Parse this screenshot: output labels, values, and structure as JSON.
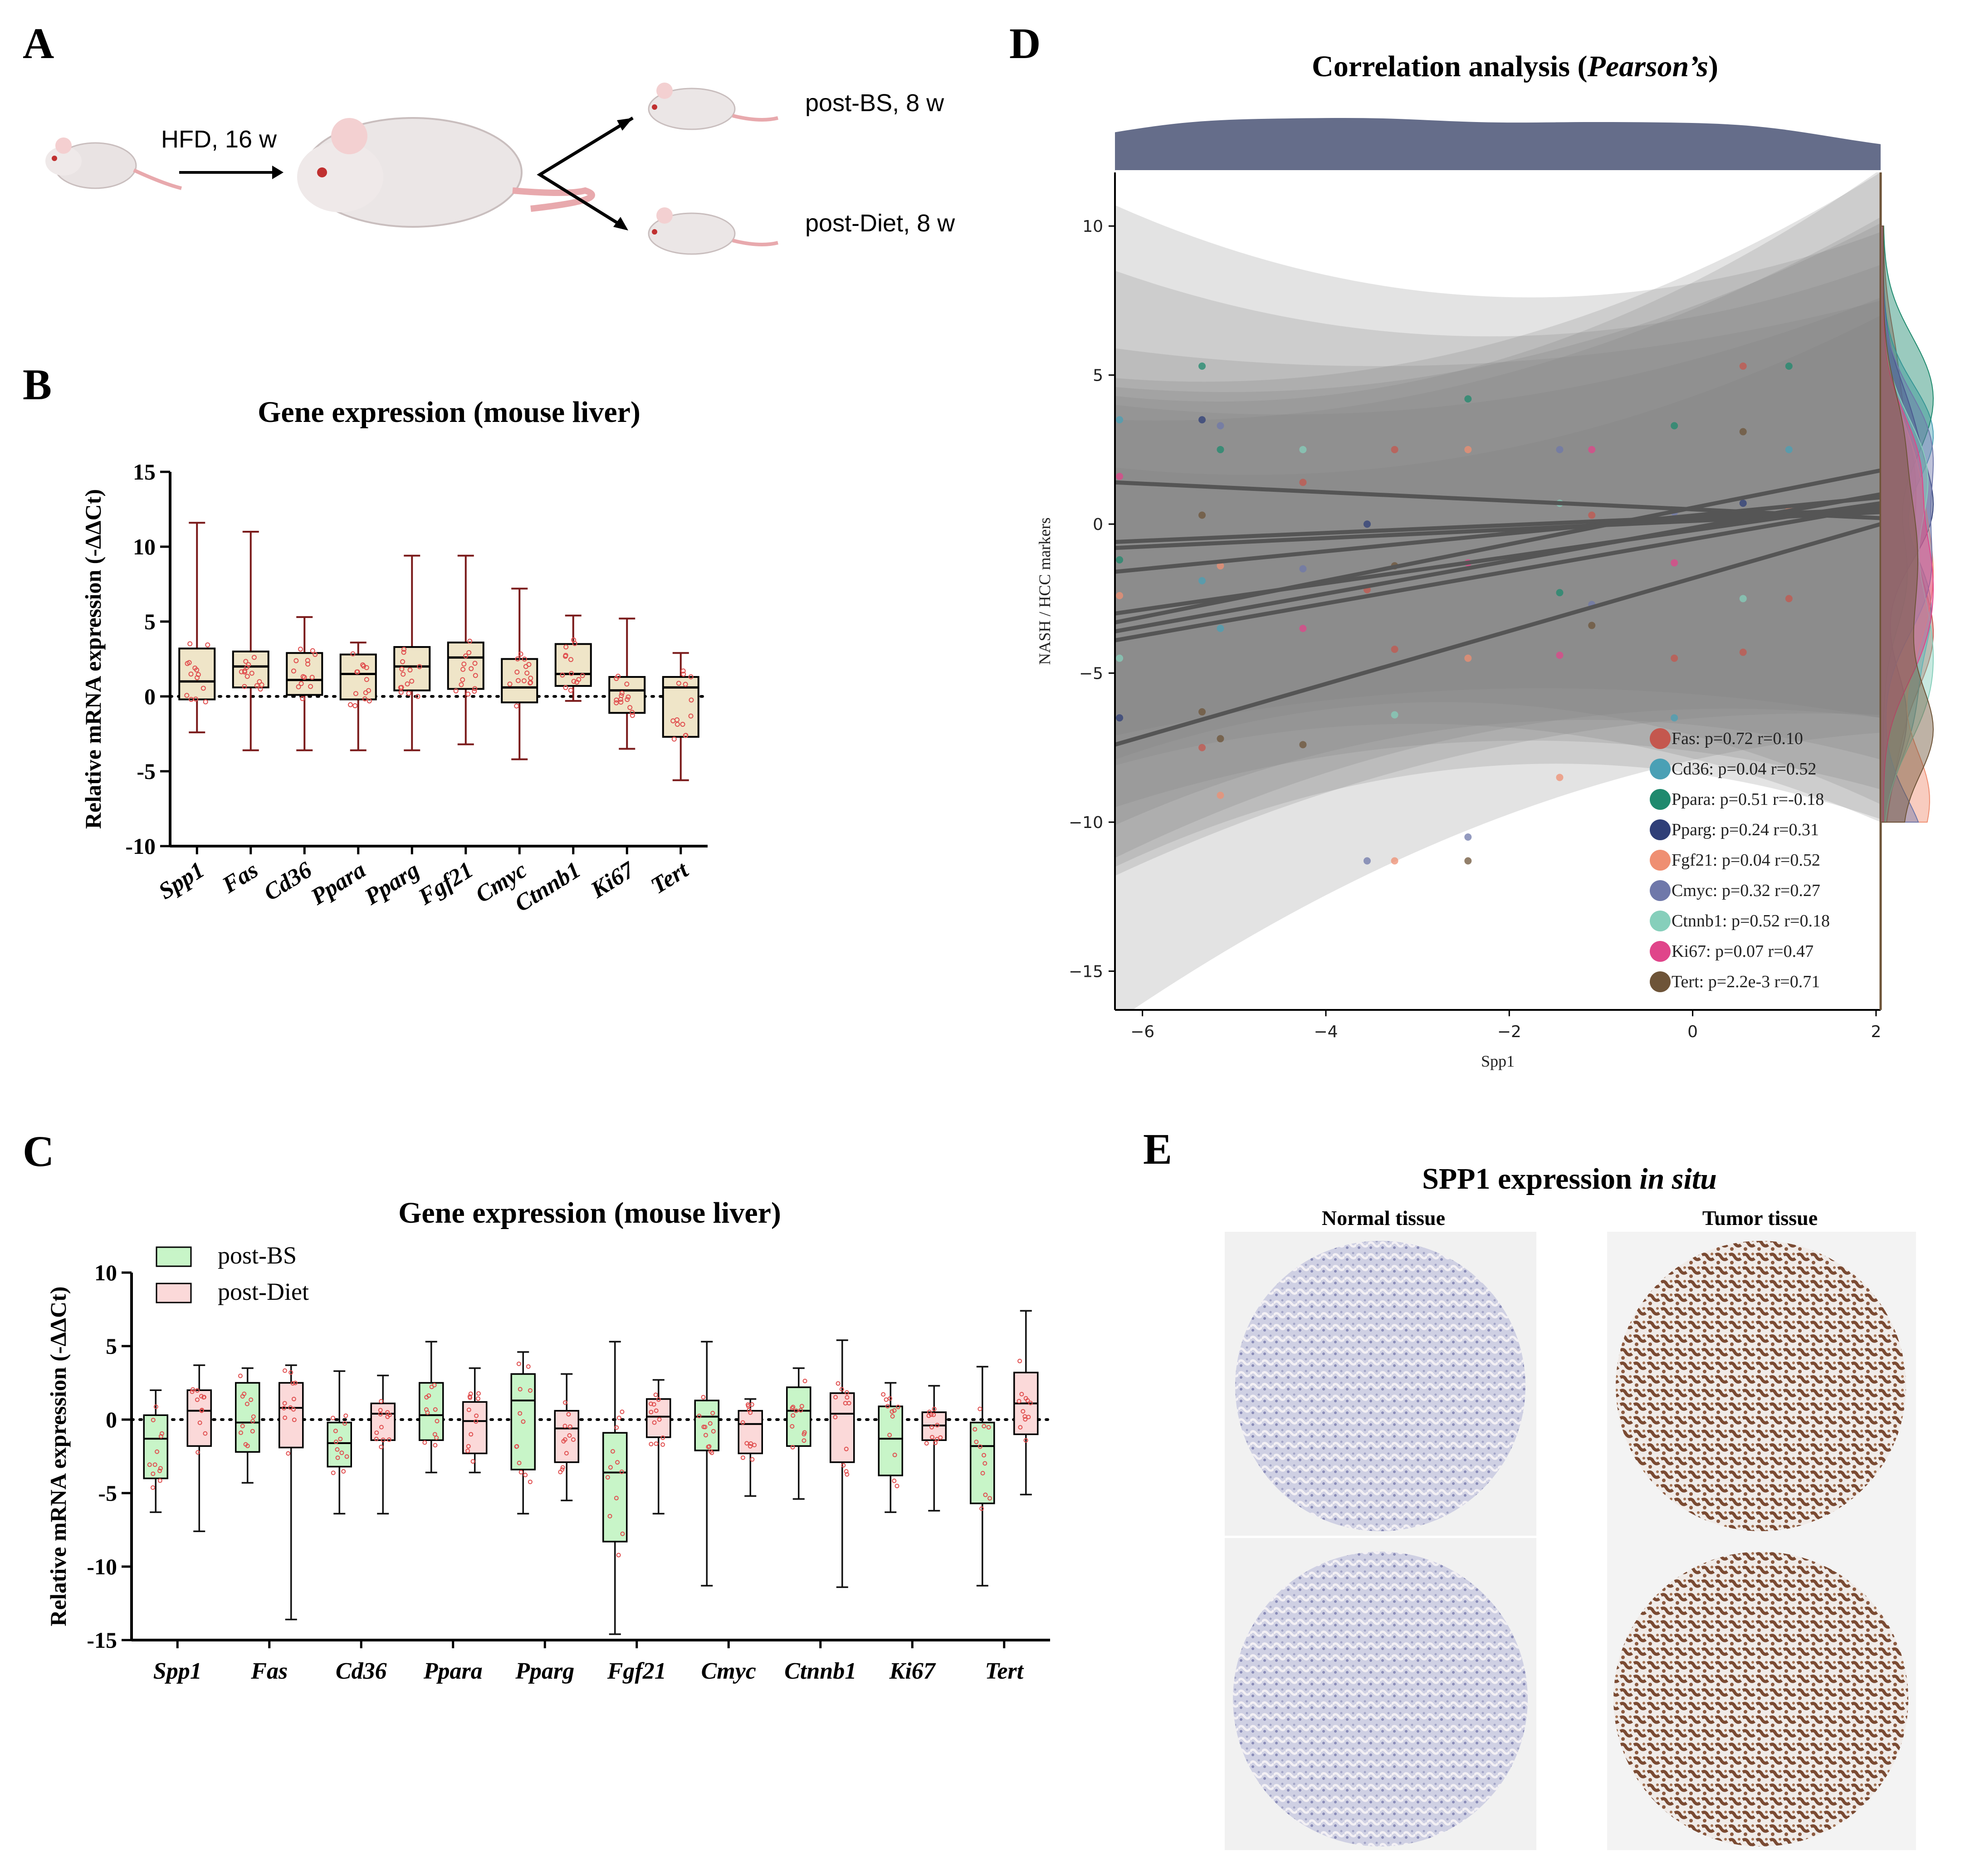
{
  "colors": {
    "boxB": "#efe5c8",
    "boxC_BS": "#c8f5c8",
    "boxC_Diet": "#fbd9d9",
    "points": "#e05050",
    "whisker": "#7a1a1a",
    "density_top": "#656d8a",
    "band": "#808080",
    "regline": "#555555"
  },
  "panelA": {
    "letter": "A",
    "arrow1_label": "HFD, 16 w",
    "branch1_label": "post-BS, 8 w",
    "branch2_label": "post-Diet, 8 w",
    "mouse_icon": "mouse-icon"
  },
  "panelB": {
    "letter": "B"
  },
  "panelC": {
    "letter": "C"
  },
  "panelD": {
    "letter": "D"
  },
  "panelE": {
    "letter": "E",
    "title_prefix": "SPP1 expression ",
    "title_italic": "in situ",
    "col1": "Normal tissue",
    "col2": "Tumor tissue",
    "image_icon": "tissue-core-image"
  },
  "chart_data": [
    {
      "id": "B",
      "type": "box",
      "title": "Gene expression (mouse liver)",
      "ylabel": "Relative mRNA expression  (-ΔΔCt)",
      "ylim": [
        -10,
        15
      ],
      "yticks": [
        "15",
        "10",
        "5",
        "0",
        "-5",
        "-10"
      ],
      "categories": [
        "Spp1",
        "Fas",
        "Cd36",
        "Ppara",
        "Pparg",
        "Fgf21",
        "Cmyc",
        "Ctnnb1",
        "Ki67",
        "Tert"
      ],
      "boxes": [
        {
          "min": -2.4,
          "q1": -0.2,
          "median": 1.0,
          "q3": 3.2,
          "max": 11.6
        },
        {
          "min": -3.6,
          "q1": 0.6,
          "median": 2.0,
          "q3": 3.0,
          "max": 11.0
        },
        {
          "min": -3.6,
          "q1": 0.1,
          "median": 1.1,
          "q3": 2.9,
          "max": 5.3
        },
        {
          "min": -3.6,
          "q1": -0.2,
          "median": 1.5,
          "q3": 2.8,
          "max": 3.6
        },
        {
          "min": -3.6,
          "q1": 0.4,
          "median": 2.0,
          "q3": 3.3,
          "max": 9.4
        },
        {
          "min": -3.2,
          "q1": 0.5,
          "median": 2.6,
          "q3": 3.6,
          "max": 9.4
        },
        {
          "min": -4.2,
          "q1": -0.4,
          "median": 0.6,
          "q3": 2.5,
          "max": 7.2
        },
        {
          "min": -0.3,
          "q1": 0.7,
          "median": 1.5,
          "q3": 3.5,
          "max": 5.4
        },
        {
          "min": -3.5,
          "q1": -1.1,
          "median": 0.4,
          "q3": 1.3,
          "max": 5.2
        },
        {
          "min": -5.6,
          "q1": -2.7,
          "median": 0.6,
          "q3": 1.3,
          "max": 2.9
        }
      ],
      "reference_line": 0
    },
    {
      "id": "C",
      "type": "box",
      "title": "Gene expression (mouse liver)",
      "ylabel": "Relative mRNA expression (-ΔΔCt)",
      "ylim": [
        -15,
        10
      ],
      "yticks": [
        "10",
        "5",
        "0",
        "-5",
        "-10",
        "-15"
      ],
      "categories": [
        "Spp1",
        "Fas",
        "Cd36",
        "Ppara",
        "Pparg",
        "Fgf21",
        "Cmyc",
        "Ctnnb1",
        "Ki67",
        "Tert"
      ],
      "series": [
        {
          "name": "post-BS",
          "boxes": [
            {
              "min": -6.3,
              "q1": -4.0,
              "median": -1.3,
              "q3": 0.3,
              "max": 2.0
            },
            {
              "min": -4.3,
              "q1": -2.2,
              "median": -0.2,
              "q3": 2.5,
              "max": 3.5
            },
            {
              "min": -6.4,
              "q1": -3.2,
              "median": -1.6,
              "q3": -0.2,
              "max": 3.3
            },
            {
              "min": -3.6,
              "q1": -1.4,
              "median": 0.3,
              "q3": 2.5,
              "max": 5.3
            },
            {
              "min": -6.4,
              "q1": -3.4,
              "median": 1.3,
              "q3": 3.1,
              "max": 4.6
            },
            {
              "min": -14.6,
              "q1": -8.3,
              "median": -3.6,
              "q3": -0.9,
              "max": 5.3
            },
            {
              "min": -11.3,
              "q1": -2.1,
              "median": 0.2,
              "q3": 1.3,
              "max": 5.3
            },
            {
              "min": -5.4,
              "q1": -1.8,
              "median": 0.6,
              "q3": 2.2,
              "max": 3.5
            },
            {
              "min": -6.3,
              "q1": -3.8,
              "median": -1.3,
              "q3": 0.9,
              "max": 2.5
            },
            {
              "min": -11.3,
              "q1": -5.7,
              "median": -1.8,
              "q3": -0.2,
              "max": 3.6
            }
          ]
        },
        {
          "name": "post-Diet",
          "boxes": [
            {
              "min": -7.6,
              "q1": -1.8,
              "median": 0.6,
              "q3": 2.0,
              "max": 3.7
            },
            {
              "min": -13.6,
              "q1": -1.9,
              "median": 0.8,
              "q3": 2.5,
              "max": 3.7
            },
            {
              "min": -6.4,
              "q1": -1.4,
              "median": 0.4,
              "q3": 1.1,
              "max": 3.0
            },
            {
              "min": -3.6,
              "q1": -2.3,
              "median": -0.1,
              "q3": 1.2,
              "max": 3.5
            },
            {
              "min": -5.5,
              "q1": -2.9,
              "median": -0.6,
              "q3": 0.6,
              "max": 3.1
            },
            {
              "min": -6.4,
              "q1": -1.2,
              "median": 0.2,
              "q3": 1.4,
              "max": 2.7
            },
            {
              "min": -5.2,
              "q1": -2.3,
              "median": -0.3,
              "q3": 0.6,
              "max": 1.4
            },
            {
              "min": -11.4,
              "q1": -2.9,
              "median": 0.4,
              "q3": 1.8,
              "max": 5.4
            },
            {
              "min": -6.2,
              "q1": -1.4,
              "median": -0.4,
              "q3": 0.5,
              "max": 2.3
            },
            {
              "min": -5.1,
              "q1": -1.0,
              "median": 1.1,
              "q3": 3.2,
              "max": 7.4
            }
          ]
        }
      ],
      "reference_line": 0
    },
    {
      "id": "D",
      "type": "scatter",
      "title_prefix": "Correlation analysis (",
      "title_italic": "Pearson’s",
      "title_suffix": ")",
      "xlabel": "Spp1",
      "ylabel": "NASH / HCC markers",
      "xlim": [
        -6.3,
        2.05
      ],
      "ylim": [
        -16.3,
        11.8
      ],
      "xticks": [
        -6,
        -4,
        -2,
        0,
        2
      ],
      "yticks": [
        10,
        5,
        0,
        -5,
        -10,
        -15
      ],
      "series": [
        {
          "name": "Fas",
          "label": "Fas: p=0.72 r=0.10",
          "color": "#c4574e",
          "line": [
            [
              -6.3,
              -0.6
            ],
            [
              2.05,
              0.5
            ]
          ]
        },
        {
          "name": "Cd36",
          "label": "Cd36: p=0.04 r=0.52",
          "color": "#4aa0b5",
          "line": [
            [
              -6.3,
              -3.3
            ],
            [
              2.05,
              1.8
            ]
          ]
        },
        {
          "name": "Ppara",
          "label": "Ppara: p=0.51 r=-0.18",
          "color": "#1f8a6e",
          "line": [
            [
              -6.3,
              1.4
            ],
            [
              2.05,
              0.2
            ]
          ]
        },
        {
          "name": "Pparg",
          "label": "Pparg: p=0.24 r=0.31",
          "color": "#2f3f78",
          "line": [
            [
              -6.3,
              -1.6
            ],
            [
              2.05,
              0.9
            ]
          ]
        },
        {
          "name": "Fgf21",
          "label": "Fgf21: p=0.04 r=0.52",
          "color": "#ef8f72",
          "line": [
            [
              -6.3,
              -3.9
            ],
            [
              2.05,
              0.6
            ]
          ]
        },
        {
          "name": "Cmyc",
          "label": "Cmyc: p=0.32 r=0.27",
          "color": "#6f78aa",
          "line": [
            [
              -6.3,
              -0.8
            ],
            [
              2.05,
              0.4
            ]
          ]
        },
        {
          "name": "Ctnnb1",
          "label": "Ctnnb1: p=0.52 r=0.18",
          "color": "#86cfbb",
          "line": [
            [
              -6.3,
              -3.0
            ],
            [
              2.05,
              0.7
            ]
          ]
        },
        {
          "name": "Ki67",
          "label": "Ki67: p=0.07 r=0.47",
          "color": "#e0458a",
          "line": [
            [
              -6.3,
              -3.6
            ],
            [
              2.05,
              1.0
            ]
          ]
        },
        {
          "name": "Tert",
          "label": "Tert: p=2.2e-3 r=0.71",
          "color": "#6e5438",
          "line": [
            [
              -6.3,
              -7.4
            ],
            [
              2.05,
              0.0
            ]
          ]
        }
      ],
      "x_values": [
        -6.25,
        -5.35,
        -5.15,
        -4.25,
        -3.55,
        -3.25,
        -2.45,
        -1.45,
        -1.1,
        -0.2,
        0.55,
        1.05
      ],
      "points": [
        [
          -5.35,
          5.3,
          "Ppara"
        ],
        [
          -5.35,
          3.5,
          "Pparg"
        ],
        [
          -5.15,
          3.3,
          "Cmyc"
        ],
        [
          -2.45,
          4.2,
          "Ppara"
        ],
        [
          0.55,
          5.3,
          "Fas"
        ],
        [
          1.05,
          5.3,
          "Ppara"
        ],
        [
          -6.25,
          3.5,
          "Cd36"
        ],
        [
          -5.15,
          2.5,
          "Ppara"
        ],
        [
          -4.25,
          2.5,
          "Ctnnb1"
        ],
        [
          -3.25,
          2.5,
          "Fas"
        ],
        [
          -2.45,
          2.5,
          "Fgf21"
        ],
        [
          -1.45,
          2.5,
          "Cmyc"
        ],
        [
          -1.1,
          2.5,
          "Ki67"
        ],
        [
          -0.2,
          3.3,
          "Ppara"
        ],
        [
          0.55,
          3.1,
          "Tert"
        ],
        [
          1.05,
          2.5,
          "Cd36"
        ],
        [
          -6.25,
          1.6,
          "Ki67"
        ],
        [
          -5.35,
          0.3,
          "Tert"
        ],
        [
          -4.25,
          1.4,
          "Fas"
        ],
        [
          -3.55,
          0.0,
          "Pparg"
        ],
        [
          -1.45,
          0.7,
          "Ctnnb1"
        ],
        [
          -1.1,
          0.3,
          "Fas"
        ],
        [
          -0.2,
          0.4,
          "Cmyc"
        ],
        [
          0.55,
          0.7,
          "Pparg"
        ],
        [
          1.05,
          0.5,
          "Fgf21"
        ],
        [
          -6.25,
          -1.2,
          "Ppara"
        ],
        [
          -5.35,
          -1.9,
          "Cd36"
        ],
        [
          -5.15,
          -1.4,
          "Fgf21"
        ],
        [
          -4.25,
          -1.5,
          "Cmyc"
        ],
        [
          -3.55,
          -2.2,
          "Fas"
        ],
        [
          -3.25,
          -1.4,
          "Tert"
        ],
        [
          -2.45,
          -1.3,
          "Ki67"
        ],
        [
          -1.45,
          -2.3,
          "Ppara"
        ],
        [
          -1.1,
          -2.7,
          "Cmyc"
        ],
        [
          -0.2,
          -1.3,
          "Ki67"
        ],
        [
          0.55,
          -2.5,
          "Ctnnb1"
        ],
        [
          1.05,
          -2.5,
          "Fas"
        ],
        [
          -6.25,
          -2.4,
          "Fgf21"
        ],
        [
          -5.15,
          -3.5,
          "Cd36"
        ],
        [
          -4.25,
          -3.5,
          "Ki67"
        ],
        [
          -3.25,
          -4.2,
          "Fas"
        ],
        [
          -2.45,
          -4.5,
          "Fgf21"
        ],
        [
          -1.45,
          -4.4,
          "Ki67"
        ],
        [
          -1.1,
          -3.4,
          "Tert"
        ],
        [
          -0.2,
          -4.5,
          "Fas"
        ],
        [
          0.55,
          -4.3,
          "Fas"
        ],
        [
          -6.25,
          -4.5,
          "Ctnnb1"
        ],
        [
          -6.25,
          -6.5,
          "Pparg"
        ],
        [
          -5.35,
          -6.3,
          "Tert"
        ],
        [
          -5.35,
          -7.5,
          "Fas"
        ],
        [
          -5.15,
          -7.2,
          "Tert"
        ],
        [
          -4.25,
          -7.4,
          "Tert"
        ],
        [
          -3.25,
          -6.4,
          "Ctnnb1"
        ],
        [
          -5.15,
          -9.1,
          "Fgf21"
        ],
        [
          -2.45,
          -10.5,
          "Cmyc"
        ],
        [
          -1.45,
          -8.5,
          "Fgf21"
        ],
        [
          -3.55,
          -11.3,
          "Cmyc"
        ],
        [
          -3.25,
          -11.3,
          "Fgf21"
        ],
        [
          -2.45,
          -11.3,
          "Tert"
        ],
        [
          -0.2,
          -6.5,
          "Cd36"
        ]
      ]
    }
  ]
}
